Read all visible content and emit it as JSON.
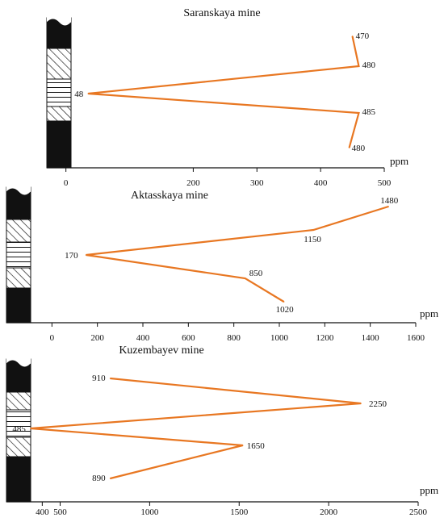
{
  "accent_color": "#e87722",
  "chart_data": [
    {
      "type": "line",
      "title": "Saranskaya mine",
      "unit_label": "ppm",
      "xlim": [
        -30,
        500
      ],
      "x_ticks": [
        "0",
        "200",
        "300",
        "400",
        "500"
      ],
      "x_tick_values": [
        0,
        200,
        300,
        400,
        500
      ],
      "points": [
        {
          "value": 450,
          "label": "470"
        },
        {
          "value": 460,
          "label": "480"
        },
        {
          "value": 35,
          "label": "48"
        },
        {
          "value": 460,
          "label": "485"
        },
        {
          "value": 445,
          "label": "480"
        }
      ]
    },
    {
      "type": "line",
      "title": "Aktasskaya mine",
      "unit_label": "ppm",
      "xlim": [
        -200,
        1600
      ],
      "x_ticks": [
        "0",
        "200",
        "400",
        "600",
        "800",
        "1000",
        "1200",
        "1400",
        "1600"
      ],
      "x_tick_values": [
        0,
        200,
        400,
        600,
        800,
        1000,
        1200,
        1400,
        1600
      ],
      "points": [
        {
          "value": 1480,
          "label": "1480"
        },
        {
          "value": 1150,
          "label": "1150"
        },
        {
          "value": 150,
          "label": "170"
        },
        {
          "value": 850,
          "label": "850"
        },
        {
          "value": 1020,
          "label": "1020"
        }
      ]
    },
    {
      "type": "line",
      "title": "Kuzembayev mine",
      "unit_label": "ppm",
      "xlim": [
        200,
        2500
      ],
      "x_ticks": [
        "400",
        "500",
        "1000",
        "1500",
        "2000",
        "2500"
      ],
      "x_tick_values": [
        400,
        500,
        1000,
        1500,
        2000,
        2500
      ],
      "points": [
        {
          "value": 780,
          "label": "910"
        },
        {
          "value": 2180,
          "label": "2250"
        },
        {
          "value": 335,
          "label": "485"
        },
        {
          "value": 1520,
          "label": "1650"
        },
        {
          "value": 780,
          "label": "890"
        }
      ]
    }
  ]
}
